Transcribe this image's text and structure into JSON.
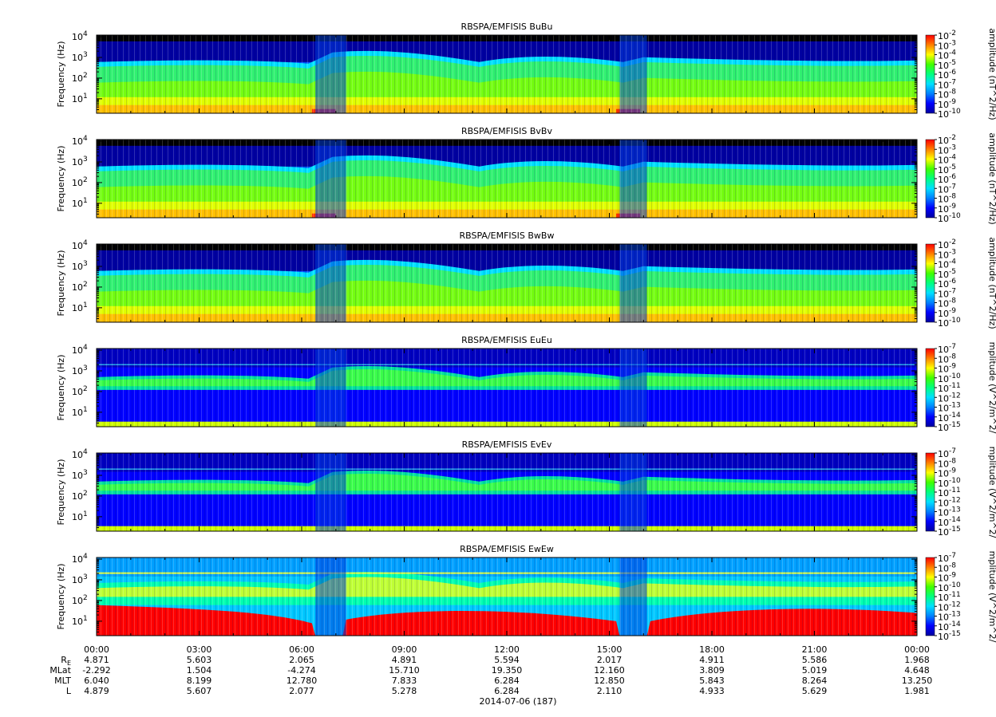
{
  "chart_data": [
    {
      "type": "heatmap",
      "title": "RBSPA/EMFISIS  BuBu",
      "ylabel": "Frequency (Hz)",
      "yscale": "log",
      "ylim": [
        2,
        12000
      ],
      "y_ticks": [
        {
          "value": 10,
          "base": "10",
          "exp": "1"
        },
        {
          "value": 100,
          "base": "10",
          "exp": "2"
        },
        {
          "value": 1000,
          "base": "10",
          "exp": "3"
        },
        {
          "value": 10000,
          "base": "10",
          "exp": "4"
        }
      ],
      "colorbar": {
        "label": "amplitude (nT^2/Hz)",
        "scale": "log",
        "range": [
          1e-10,
          0.01
        ],
        "ticks": [
          {
            "base": "10",
            "exp": "-2"
          },
          {
            "base": "10",
            "exp": "-3"
          },
          {
            "base": "10",
            "exp": "-4"
          },
          {
            "base": "10",
            "exp": "-5"
          },
          {
            "base": "10",
            "exp": "-6"
          },
          {
            "base": "10",
            "exp": "-7"
          },
          {
            "base": "10",
            "exp": "-8"
          },
          {
            "base": "10",
            "exp": "-9"
          },
          {
            "base": "10",
            "exp": "-10"
          }
        ]
      },
      "profile": "B"
    },
    {
      "type": "heatmap",
      "title": "RBSPA/EMFISIS  BvBv",
      "ylabel": "Frequency (Hz)",
      "yscale": "log",
      "ylim": [
        2,
        12000
      ],
      "y_ticks": [
        {
          "value": 10,
          "base": "10",
          "exp": "1"
        },
        {
          "value": 100,
          "base": "10",
          "exp": "2"
        },
        {
          "value": 1000,
          "base": "10",
          "exp": "3"
        },
        {
          "value": 10000,
          "base": "10",
          "exp": "4"
        }
      ],
      "colorbar": {
        "label": "amplitude (nT^2/Hz)",
        "scale": "log",
        "range": [
          1e-10,
          0.01
        ],
        "ticks": [
          {
            "base": "10",
            "exp": "-2"
          },
          {
            "base": "10",
            "exp": "-3"
          },
          {
            "base": "10",
            "exp": "-4"
          },
          {
            "base": "10",
            "exp": "-5"
          },
          {
            "base": "10",
            "exp": "-6"
          },
          {
            "base": "10",
            "exp": "-7"
          },
          {
            "base": "10",
            "exp": "-8"
          },
          {
            "base": "10",
            "exp": "-9"
          },
          {
            "base": "10",
            "exp": "-10"
          }
        ]
      },
      "profile": "B"
    },
    {
      "type": "heatmap",
      "title": "RBSPA/EMFISIS  BwBw",
      "ylabel": "Frequency (Hz)",
      "yscale": "log",
      "ylim": [
        2,
        12000
      ],
      "y_ticks": [
        {
          "value": 10,
          "base": "10",
          "exp": "1"
        },
        {
          "value": 100,
          "base": "10",
          "exp": "2"
        },
        {
          "value": 1000,
          "base": "10",
          "exp": "3"
        },
        {
          "value": 10000,
          "base": "10",
          "exp": "4"
        }
      ],
      "colorbar": {
        "label": "amplitude (nT^2/Hz)",
        "scale": "log",
        "range": [
          1e-10,
          0.01
        ],
        "ticks": [
          {
            "base": "10",
            "exp": "-2"
          },
          {
            "base": "10",
            "exp": "-3"
          },
          {
            "base": "10",
            "exp": "-4"
          },
          {
            "base": "10",
            "exp": "-5"
          },
          {
            "base": "10",
            "exp": "-6"
          },
          {
            "base": "10",
            "exp": "-7"
          },
          {
            "base": "10",
            "exp": "-8"
          },
          {
            "base": "10",
            "exp": "-9"
          },
          {
            "base": "10",
            "exp": "-10"
          }
        ]
      },
      "profile": "Bw"
    },
    {
      "type": "heatmap",
      "title": "RBSPA/EMFISIS  EuEu",
      "ylabel": "Frequency (Hz)",
      "yscale": "log",
      "ylim": [
        2,
        12000
      ],
      "y_ticks": [
        {
          "value": 10,
          "base": "10",
          "exp": "1"
        },
        {
          "value": 100,
          "base": "10",
          "exp": "2"
        },
        {
          "value": 1000,
          "base": "10",
          "exp": "3"
        },
        {
          "value": 10000,
          "base": "10",
          "exp": "4"
        }
      ],
      "colorbar": {
        "label": "mplitude (V^2/m^2/",
        "scale": "log",
        "range": [
          1e-15,
          1e-07
        ],
        "ticks": [
          {
            "base": "10",
            "exp": "-7"
          },
          {
            "base": "10",
            "exp": "-8"
          },
          {
            "base": "10",
            "exp": "-9"
          },
          {
            "base": "10",
            "exp": "-10"
          },
          {
            "base": "10",
            "exp": "-11"
          },
          {
            "base": "10",
            "exp": "-12"
          },
          {
            "base": "10",
            "exp": "-13"
          },
          {
            "base": "10",
            "exp": "-14"
          },
          {
            "base": "10",
            "exp": "-15"
          }
        ]
      },
      "profile": "E"
    },
    {
      "type": "heatmap",
      "title": "RBSPA/EMFISIS  EvEv",
      "ylabel": "Frequency (Hz)",
      "yscale": "log",
      "ylim": [
        2,
        12000
      ],
      "y_ticks": [
        {
          "value": 10,
          "base": "10",
          "exp": "1"
        },
        {
          "value": 100,
          "base": "10",
          "exp": "2"
        },
        {
          "value": 1000,
          "base": "10",
          "exp": "3"
        },
        {
          "value": 10000,
          "base": "10",
          "exp": "4"
        }
      ],
      "colorbar": {
        "label": "mplitude (V^2/m^2/",
        "scale": "log",
        "range": [
          1e-15,
          1e-07
        ],
        "ticks": [
          {
            "base": "10",
            "exp": "-7"
          },
          {
            "base": "10",
            "exp": "-8"
          },
          {
            "base": "10",
            "exp": "-9"
          },
          {
            "base": "10",
            "exp": "-10"
          },
          {
            "base": "10",
            "exp": "-11"
          },
          {
            "base": "10",
            "exp": "-12"
          },
          {
            "base": "10",
            "exp": "-13"
          },
          {
            "base": "10",
            "exp": "-14"
          },
          {
            "base": "10",
            "exp": "-15"
          }
        ]
      },
      "profile": "E"
    },
    {
      "type": "heatmap",
      "title": "RBSPA/EMFISIS  EwEw",
      "ylabel": "Frequency (Hz)",
      "yscale": "log",
      "ylim": [
        2,
        12000
      ],
      "y_ticks": [
        {
          "value": 10,
          "base": "10",
          "exp": "1"
        },
        {
          "value": 100,
          "base": "10",
          "exp": "2"
        },
        {
          "value": 1000,
          "base": "10",
          "exp": "3"
        },
        {
          "value": 10000,
          "base": "10",
          "exp": "4"
        }
      ],
      "colorbar": {
        "label": "mplitude (V^2/m^2/",
        "scale": "log",
        "range": [
          1e-15,
          1e-07
        ],
        "ticks": [
          {
            "base": "10",
            "exp": "-7"
          },
          {
            "base": "10",
            "exp": "-8"
          },
          {
            "base": "10",
            "exp": "-9"
          },
          {
            "base": "10",
            "exp": "-10"
          },
          {
            "base": "10",
            "exp": "-11"
          },
          {
            "base": "10",
            "exp": "-12"
          },
          {
            "base": "10",
            "exp": "-13"
          },
          {
            "base": "10",
            "exp": "-14"
          },
          {
            "base": "10",
            "exp": "-15"
          }
        ]
      },
      "profile": "Ew"
    }
  ],
  "time_axis": {
    "labels": [
      "00:00",
      "03:00",
      "06:00",
      "09:00",
      "12:00",
      "15:00",
      "18:00",
      "21:00",
      "00:00"
    ],
    "date_label": "2014-07-06 (187)"
  },
  "ephemeris": [
    {
      "label_main": "R",
      "label_sub": "E",
      "values": [
        "4.871",
        "5.603",
        "2.065",
        "4.891",
        "5.594",
        "2.017",
        "4.911",
        "5.586",
        "1.968"
      ]
    },
    {
      "label_main": "MLat",
      "label_sub": "",
      "values": [
        "-2.292",
        "1.504",
        "-4.274",
        "15.710",
        "19.350",
        "12.160",
        "3.809",
        "5.019",
        "4.648"
      ]
    },
    {
      "label_main": "MLT",
      "label_sub": "",
      "values": [
        "6.040",
        "8.199",
        "12.780",
        "7.833",
        "6.284",
        "12.850",
        "5.843",
        "8.264",
        "13.250"
      ]
    },
    {
      "label_main": "L",
      "label_sub": "",
      "values": [
        "4.879",
        "5.607",
        "2.077",
        "5.278",
        "6.284",
        "2.110",
        "4.933",
        "5.629",
        "1.981"
      ]
    }
  ],
  "colors": {
    "colormap": [
      "#0000a0",
      "#0000ff",
      "#0080ff",
      "#00e0ff",
      "#00ff80",
      "#40ff00",
      "#ffff00",
      "#ff8000",
      "#ff0000"
    ],
    "no_data": "#000000"
  }
}
